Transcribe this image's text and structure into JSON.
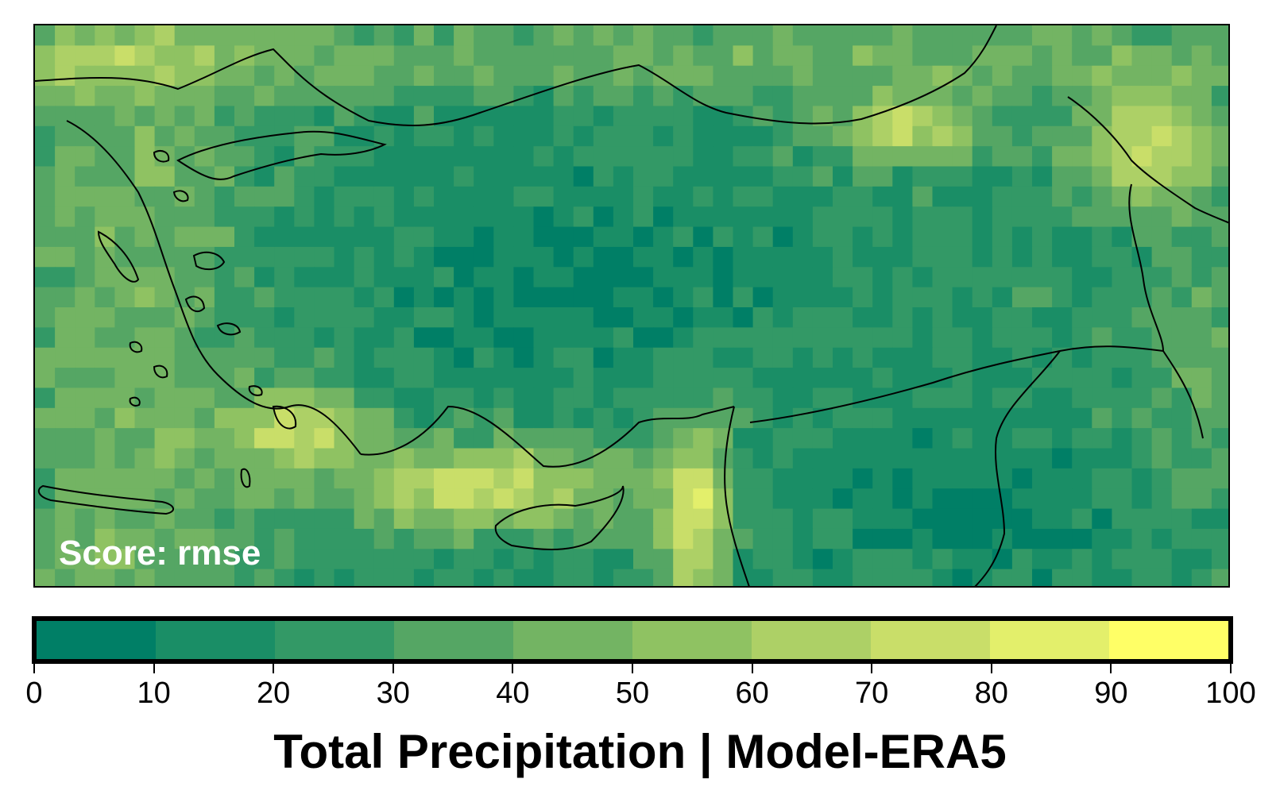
{
  "map": {
    "score_label": "Score: rmse",
    "grid": {
      "cols": 60,
      "rows": 28
    }
  },
  "colorbar": {
    "min": 0,
    "max": 100,
    "ticks": [
      "0",
      "10",
      "20",
      "30",
      "40",
      "50",
      "60",
      "70",
      "80",
      "90",
      "100"
    ],
    "colors": [
      "#007f66",
      "#1a8e66",
      "#339966",
      "#55a664",
      "#73b463",
      "#8fc262",
      "#add066",
      "#c9de69",
      "#e3ef6b",
      "#ffff66"
    ],
    "title": "Total Precipitation | Model-ERA5"
  }
}
